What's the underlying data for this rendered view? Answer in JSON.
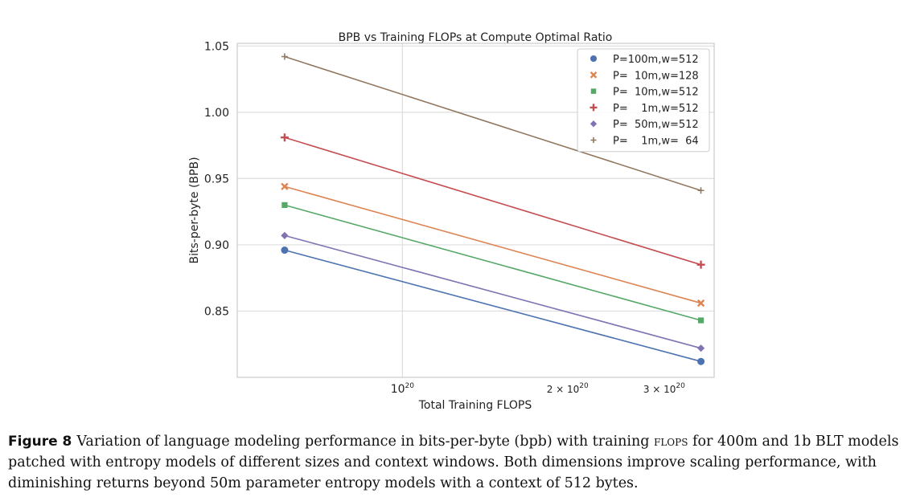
{
  "chart_data": {
    "type": "line",
    "title": "BPB vs Training FLOPs at Compute Optimal Ratio",
    "xlabel": "Total Training FLOPS",
    "ylabel": "Bits-per-byte (BPB)",
    "x_scale": "log",
    "x": [
      6.1e+19,
      3.5e+20
    ],
    "xlim": [
      5e+19,
      3.7e+20
    ],
    "ylim": [
      0.8,
      1.052
    ],
    "grid": true,
    "legend_position": "top-right",
    "x_ticks": [
      {
        "value": 1e+20,
        "base": "10",
        "exp": "20"
      },
      {
        "value": 2e+20,
        "base": "2 × 10",
        "exp": "20"
      },
      {
        "value": 3e+20,
        "base": "3 × 10",
        "exp": "20"
      }
    ],
    "y_ticks": [
      {
        "value": 0.85,
        "label": "0.85"
      },
      {
        "value": 0.9,
        "label": "0.90"
      },
      {
        "value": 0.95,
        "label": "0.95"
      },
      {
        "value": 1.0,
        "label": "1.00"
      },
      {
        "value": 1.05,
        "label": "1.05"
      }
    ],
    "series": [
      {
        "name": "P=100m,w=512",
        "values": [
          0.896,
          0.812
        ],
        "color": "#4c72b0",
        "marker": "circle"
      },
      {
        "name": "P=  10m,w=128",
        "values": [
          0.944,
          0.856
        ],
        "color": "#dd8452",
        "marker": "x"
      },
      {
        "name": "P=  10m,w=512",
        "values": [
          0.93,
          0.843
        ],
        "color": "#55a868",
        "marker": "square"
      },
      {
        "name": "P=    1m,w=512",
        "values": [
          0.981,
          0.885
        ],
        "color": "#c44e52",
        "marker": "plus"
      },
      {
        "name": "P=  50m,w=512",
        "values": [
          0.907,
          0.822
        ],
        "color": "#8172b3",
        "marker": "diamond"
      },
      {
        "name": "P=    1m,w=  64",
        "values": [
          1.042,
          0.941
        ],
        "color": "#937860",
        "marker": "thin-plus"
      }
    ]
  },
  "caption": {
    "label": "Figure 8",
    "text_before": "Variation of language modeling performance in bits-per-byte (bpb) with training ",
    "flops_word": "flops",
    "text_after": " for 400m and 1b BLT models patched with entropy models of different sizes and context windows. Both dimensions improve scaling performance, with diminishing returns beyond 50m parameter entropy models with a context of 512 bytes."
  }
}
